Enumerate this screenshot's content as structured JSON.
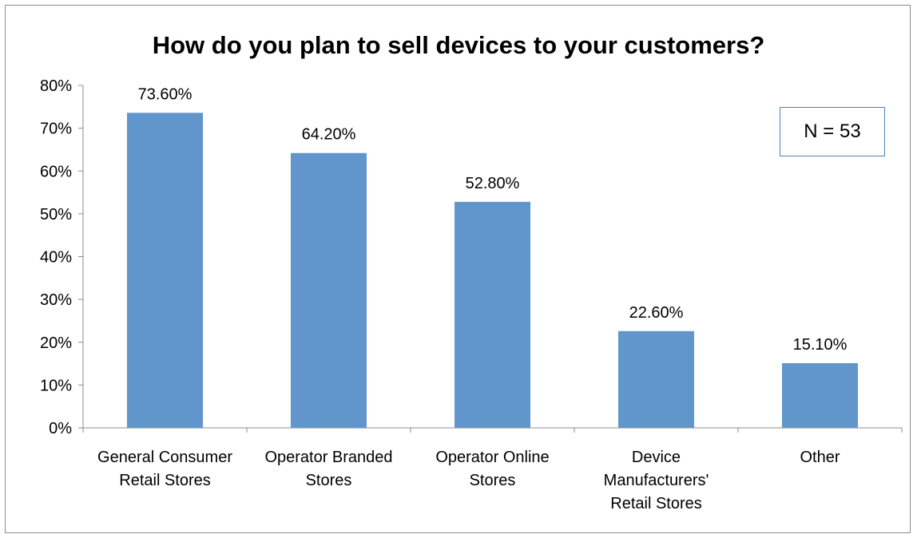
{
  "chart_data": {
    "type": "bar",
    "title": "How do you plan to sell devices to your customers?",
    "categories": [
      [
        "General Consumer",
        "Retail Stores"
      ],
      [
        "Operator Branded",
        "Stores"
      ],
      [
        "Operator Online",
        "Stores"
      ],
      [
        "Device",
        "Manufacturers'",
        "Retail Stores"
      ],
      [
        "Other"
      ]
    ],
    "values": [
      73.6,
      64.2,
      52.8,
      22.6,
      15.1
    ],
    "data_labels": [
      "73.60%",
      "64.20%",
      "52.80%",
      "22.60%",
      "15.10%"
    ],
    "yticks": [
      "0%",
      "10%",
      "20%",
      "30%",
      "40%",
      "50%",
      "60%",
      "70%",
      "80%"
    ],
    "ylim": [
      0,
      80
    ],
    "grid": false,
    "legend": "none",
    "bar_color": "#6096cc",
    "annotation": "N = 53"
  }
}
